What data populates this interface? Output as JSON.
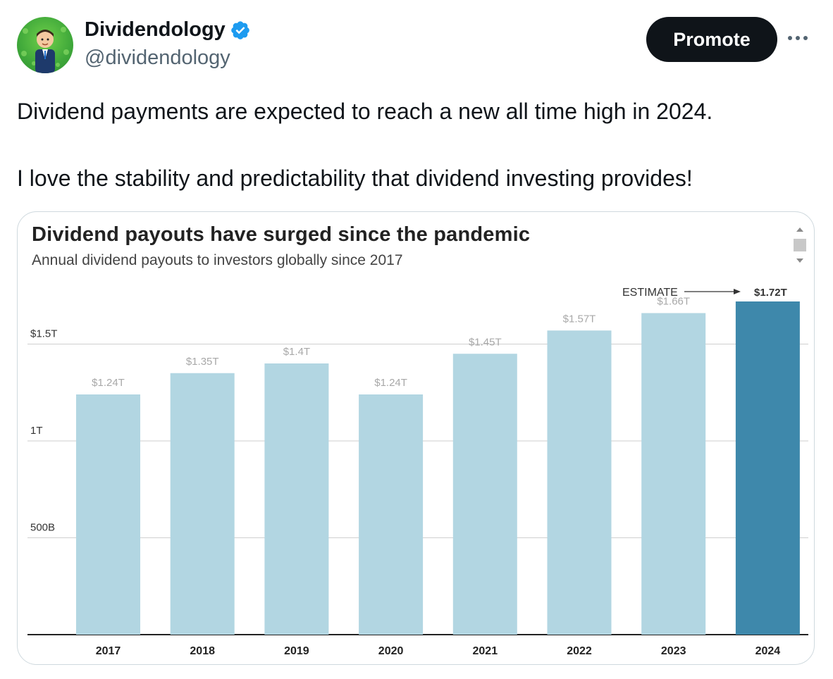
{
  "author": {
    "name": "Dividendology",
    "handle": "@dividendology"
  },
  "actions": {
    "promote_label": "Promote"
  },
  "tweet": {
    "lines": [
      "Dividend payments are expected to reach a new all time high in 2024.",
      "I love the stability and predictability that dividend investing provides!"
    ]
  },
  "colors": {
    "verified": "#1d9bf0",
    "bar": "#b2d6e2",
    "bar_highlight": "#3e88ab"
  },
  "icons": {
    "verified": "verified-badge-icon",
    "more": "more-icon"
  },
  "chart_data": {
    "type": "bar",
    "title": "Dividend payouts have surged since the pandemic",
    "subtitle": "Annual dividend payouts to investors globally since 2017",
    "categories": [
      "2017",
      "2018",
      "2019",
      "2020",
      "2021",
      "2022",
      "2023",
      "2024"
    ],
    "values": [
      1.24,
      1.35,
      1.4,
      1.24,
      1.45,
      1.57,
      1.66,
      1.72
    ],
    "value_labels": [
      "$1.24T",
      "$1.35T",
      "$1.4T",
      "$1.24T",
      "$1.45T",
      "$1.57T",
      "$1.66T",
      "$1.72T"
    ],
    "highlight_index": 7,
    "annotation": "ESTIMATE",
    "y_ticks": [
      {
        "value": 0.5,
        "label": "500B"
      },
      {
        "value": 1.0,
        "label": "1T"
      },
      {
        "value": 1.5,
        "label": "$1.5T"
      }
    ],
    "ylim": [
      0,
      1.72
    ],
    "grid": true,
    "xlabel": "",
    "ylabel": ""
  }
}
